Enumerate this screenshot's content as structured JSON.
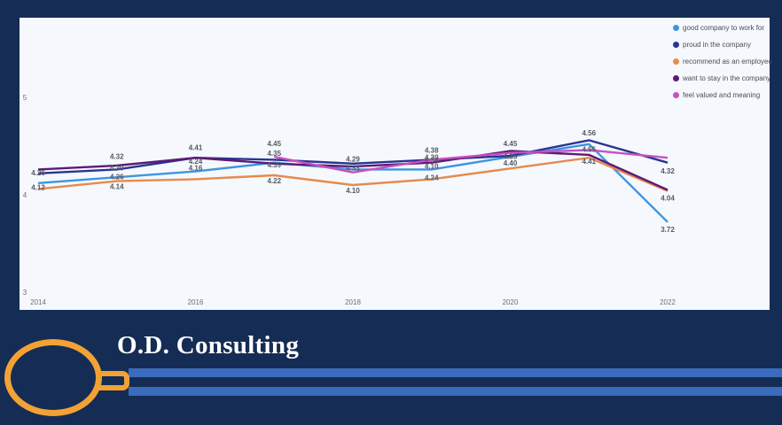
{
  "brand": {
    "title": "O.D. Consulting"
  },
  "colors": {
    "background": "#152c55",
    "stripe": "#3a6bbd",
    "logo": "#f2a234"
  },
  "chart_data": {
    "type": "line",
    "title": "",
    "xlabel": "",
    "ylabel": "",
    "x": [
      2014,
      2015,
      2016,
      2017,
      2018,
      2019,
      2020,
      2021,
      2022
    ],
    "x_ticks": [
      "2014",
      "2016",
      "2018",
      "2020",
      "2022"
    ],
    "y_ticks": [
      "3",
      "4",
      "5"
    ],
    "ylim": [
      3,
      5.25
    ],
    "grid": false,
    "legend_position": "top-right",
    "series": [
      {
        "name": "good company to work for",
        "color": "#3d95e0",
        "values": [
          4.12,
          4.18,
          4.24,
          4.33,
          4.26,
          4.26,
          4.39,
          4.52,
          3.72
        ]
      },
      {
        "name": "proud in the company",
        "color": "#283593",
        "values": [
          4.22,
          4.26,
          4.38,
          4.36,
          4.32,
          4.36,
          4.4,
          4.56,
          4.33
        ]
      },
      {
        "name": "recommend as an employee",
        "color": "#e68a4d",
        "values": [
          4.06,
          4.14,
          4.16,
          4.2,
          4.1,
          4.16,
          4.27,
          4.38,
          4.04
        ]
      },
      {
        "name": "want to stay in the company",
        "color": "#5c1a77",
        "values": [
          4.26,
          4.3,
          4.38,
          4.32,
          4.29,
          4.33,
          4.45,
          4.41,
          4.05
        ]
      },
      {
        "name": "feel valued  and meaning",
        "color": "#c94fc0",
        "values": [
          null,
          null,
          null,
          4.39,
          4.23,
          4.36,
          4.43,
          4.46,
          4.38
        ]
      }
    ],
    "data_labels": [
      {
        "text": "4.26",
        "x": 2014,
        "y": 4.2
      },
      {
        "text": "4.12",
        "x": 2014,
        "y": 4.05
      },
      {
        "text": "4.32",
        "x": 2015,
        "y": 4.37
      },
      {
        "text": "4.30",
        "x": 2015,
        "y": 4.25
      },
      {
        "text": "4.26",
        "x": 2015,
        "y": 4.16
      },
      {
        "text": "4.14",
        "x": 2015,
        "y": 4.06
      },
      {
        "text": "4.41",
        "x": 2016,
        "y": 4.46
      },
      {
        "text": "4.24",
        "x": 2016,
        "y": 4.32
      },
      {
        "text": "4.16",
        "x": 2016,
        "y": 4.25
      },
      {
        "text": "4.45",
        "x": 2017,
        "y": 4.5
      },
      {
        "text": "4.35",
        "x": 2017,
        "y": 4.4
      },
      {
        "text": "4.39",
        "x": 2017,
        "y": 4.28
      },
      {
        "text": "4.22",
        "x": 2017,
        "y": 4.12
      },
      {
        "text": "4.29",
        "x": 2018,
        "y": 4.34
      },
      {
        "text": "4.33",
        "x": 2018,
        "y": 4.25
      },
      {
        "text": "4.10",
        "x": 2018,
        "y": 4.02
      },
      {
        "text": "4.38",
        "x": 2019,
        "y": 4.43
      },
      {
        "text": "4.30",
        "x": 2019,
        "y": 4.36
      },
      {
        "text": "4.34",
        "x": 2019,
        "y": 4.33
      },
      {
        "text": "4.10",
        "x": 2019,
        "y": 4.27
      },
      {
        "text": "4.24",
        "x": 2019,
        "y": 4.15
      },
      {
        "text": "4.45",
        "x": 2020,
        "y": 4.5
      },
      {
        "text": "4.35",
        "x": 2020,
        "y": 4.37
      },
      {
        "text": "4.40",
        "x": 2020,
        "y": 4.3
      },
      {
        "text": "4.56",
        "x": 2021,
        "y": 4.61
      },
      {
        "text": "4.55",
        "x": 2021,
        "y": 4.44
      },
      {
        "text": "4.41",
        "x": 2021,
        "y": 4.32
      },
      {
        "text": "4.32",
        "x": 2022,
        "y": 4.22
      },
      {
        "text": "4.04",
        "x": 2022,
        "y": 3.94
      },
      {
        "text": "3.72",
        "x": 2022,
        "y": 3.62
      }
    ]
  }
}
